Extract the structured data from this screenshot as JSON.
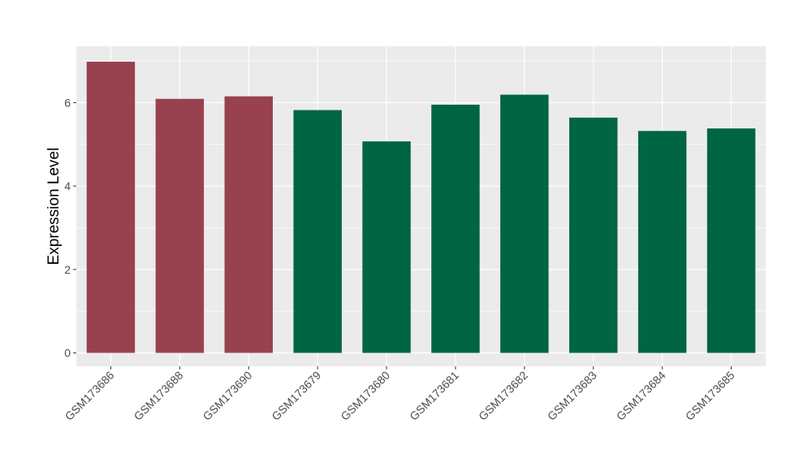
{
  "chart_data": {
    "type": "bar",
    "ylabel": "Expression Level",
    "xlabel": "",
    "ylim": [
      -0.32,
      7.35
    ],
    "yticks": [
      0,
      2,
      4,
      6
    ],
    "grid": true,
    "categories": [
      "GSM173686",
      "GSM173688",
      "GSM173690",
      "GSM173679",
      "GSM173680",
      "GSM173681",
      "GSM173682",
      "GSM173683",
      "GSM173684",
      "GSM173685"
    ],
    "values": [
      6.98,
      6.09,
      6.15,
      5.82,
      5.07,
      5.95,
      6.19,
      5.64,
      5.32,
      5.38
    ],
    "bar_colors": [
      "#98424F",
      "#98424F",
      "#98424F",
      "#006543",
      "#006543",
      "#006543",
      "#006543",
      "#006543",
      "#006543",
      "#006543"
    ],
    "panel_background": "#EBEBEB",
    "grid_color": "#FFFFFF"
  }
}
